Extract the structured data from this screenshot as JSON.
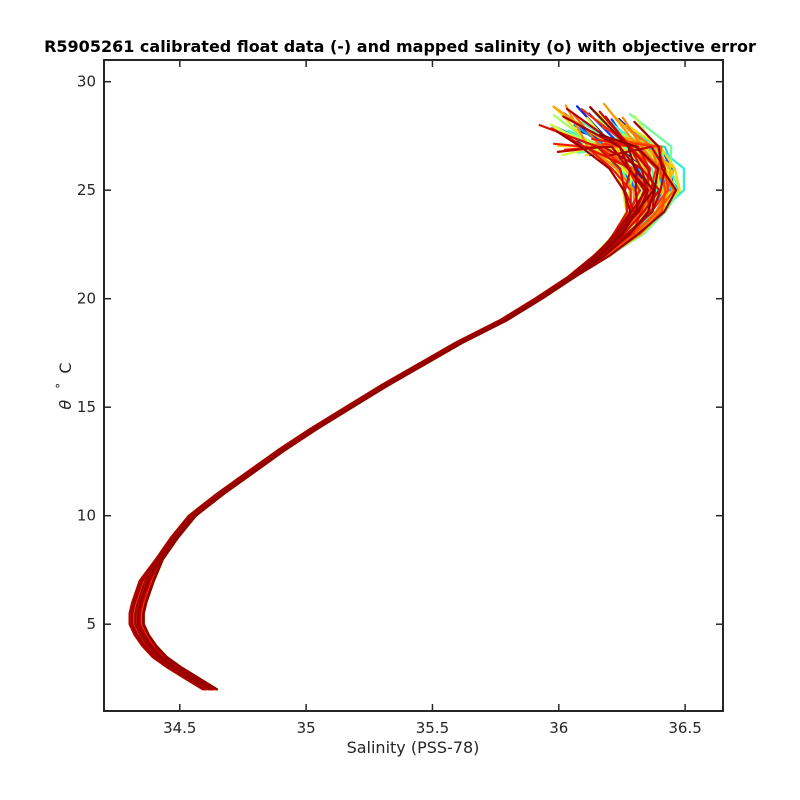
{
  "chart_data": {
    "type": "line",
    "title": "R5905261 calibrated float data (-) and mapped salinity (o) with objective error",
    "xlabel": "Salinity (PSS-78)",
    "ylabel_symbol": "θ",
    "ylabel_degree": "°",
    "ylabel_unit": "C",
    "xlim": [
      34.2,
      36.65
    ],
    "ylim": [
      1.0,
      31.0
    ],
    "xticks": [
      34.5,
      35,
      35.5,
      36,
      36.5
    ],
    "xtick_labels": [
      "34.5",
      "35",
      "35.5",
      "36",
      "36.5"
    ],
    "yticks": [
      5,
      10,
      15,
      20,
      25,
      30
    ],
    "ytick_labels": [
      "5",
      "10",
      "15",
      "20",
      "25",
      "30"
    ],
    "grid": false,
    "colormap": [
      "#0000b0",
      "#0040ff",
      "#00a0ff",
      "#40ffd0",
      "#80ff80",
      "#d0ff40",
      "#ffd000",
      "#ff8000",
      "#ff2000",
      "#c00000",
      "#900000"
    ],
    "series_template": {
      "theta": [
        2.0,
        2.5,
        3.0,
        3.5,
        4.0,
        4.5,
        5.0,
        5.5,
        6.0,
        7.0,
        8.0,
        9.0,
        10.0,
        11.0,
        12.0,
        13.0,
        14.0,
        15.0,
        16.0,
        17.0,
        18.0,
        19.0,
        20.0,
        21.0,
        22.0,
        23.0,
        24.0,
        25.0,
        26.0,
        27.0,
        28.0
      ],
      "salinity": [
        34.62,
        34.55,
        34.48,
        34.42,
        34.38,
        34.35,
        34.33,
        34.33,
        34.34,
        34.37,
        34.42,
        34.48,
        34.55,
        34.66,
        34.78,
        34.9,
        35.03,
        35.17,
        35.31,
        35.46,
        35.61,
        35.78,
        35.92,
        36.05,
        36.16,
        36.25,
        36.31,
        36.33,
        36.3,
        36.21,
        36.06
      ]
    },
    "profile_count": 80
  }
}
